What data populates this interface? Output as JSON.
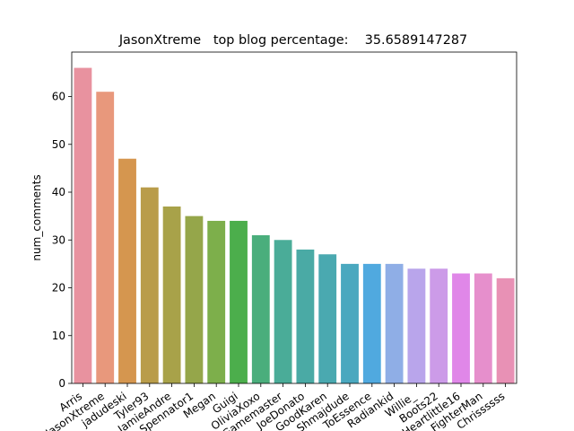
{
  "chart_data": {
    "type": "bar",
    "title": "JasonXtreme   top blog percentage:    35.6589147287",
    "xlabel": "",
    "ylabel": "num_comments",
    "ylim": [
      0,
      69.3
    ],
    "yticks": [
      0,
      10,
      20,
      30,
      40,
      50,
      60
    ],
    "grid": false,
    "legend": "none",
    "categories": [
      "Arris",
      "JasonXtreme",
      "jadudeski",
      "Tyler93",
      "JamieAndre",
      "Spennator1",
      "Megan",
      "Guigi",
      "OliviaXoxo",
      "Gamemaster",
      "JoeDonato",
      "GoodKaren",
      "Shmajdude",
      "ToEssence",
      "Radiankid",
      "Willie_",
      "Boots22",
      "Heartlittle16",
      "FighterMan",
      "Chrissssss"
    ],
    "values": [
      66,
      61,
      47,
      41,
      37,
      35,
      34,
      34,
      31,
      30,
      28,
      27,
      25,
      25,
      25,
      24,
      24,
      23,
      23,
      22
    ],
    "colors": [
      "#e8929f",
      "#e8987c",
      "#d5964f",
      "#b99c4a",
      "#a8a249",
      "#95a64a",
      "#7daf4b",
      "#4cae4c",
      "#4aae7c",
      "#4aac98",
      "#4aaaa5",
      "#4aa9b0",
      "#4aa8bf",
      "#50a9df",
      "#8faee6",
      "#b9a5eb",
      "#cc9be8",
      "#e087e8",
      "#e68fcc",
      "#e891b5"
    ]
  }
}
